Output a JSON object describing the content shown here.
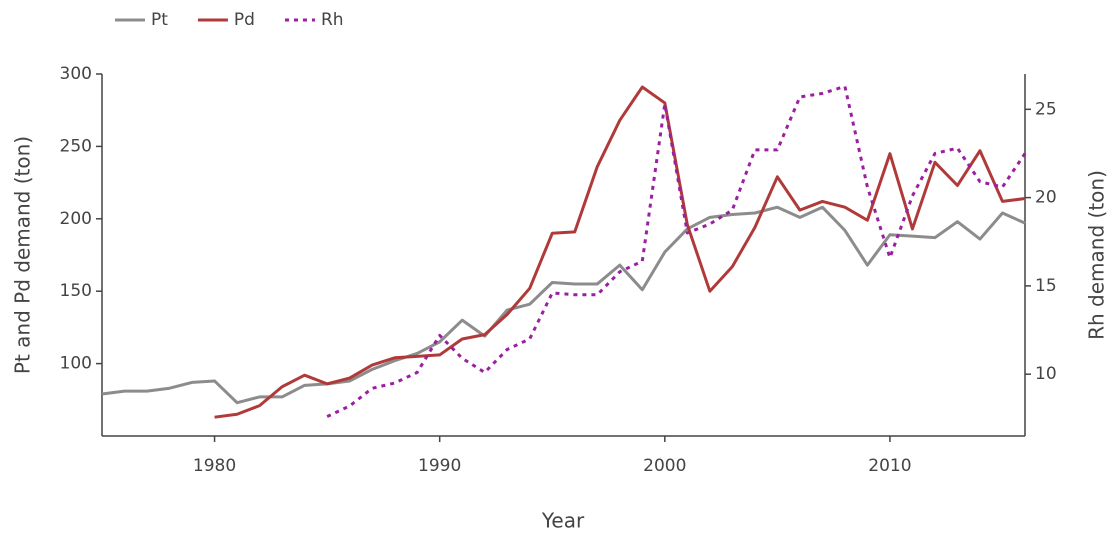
{
  "chart_data": {
    "type": "line",
    "x_label": "Year",
    "y_label": "Pt and Pd demand (ton)",
    "y2_label": "Rh demand (ton)",
    "x": [
      1975,
      1976,
      1977,
      1978,
      1979,
      1980,
      1981,
      1982,
      1983,
      1984,
      1985,
      1986,
      1987,
      1988,
      1989,
      1990,
      1991,
      1992,
      1993,
      1994,
      1995,
      1996,
      1997,
      1998,
      1999,
      2000,
      2001,
      2002,
      2003,
      2004,
      2005,
      2006,
      2007,
      2008,
      2009,
      2010,
      2011,
      2012,
      2013,
      2014,
      2015,
      2016
    ],
    "series": [
      {
        "name": "Pt",
        "color": "#8c8c8c",
        "dash": false,
        "values": [
          79,
          81,
          81,
          83,
          87,
          88,
          73,
          77,
          77,
          85,
          86,
          88,
          96,
          102,
          107,
          115,
          130,
          119,
          137,
          141,
          156,
          155,
          155,
          168,
          151,
          177,
          193,
          201,
          203,
          204,
          208,
          201,
          208,
          192,
          168,
          189,
          188,
          187,
          198,
          186,
          204,
          197
        ]
      },
      {
        "name": "Pd",
        "color": "#b03a3a",
        "dash": false,
        "values": [
          null,
          null,
          null,
          null,
          null,
          63,
          65,
          71,
          84,
          92,
          86,
          90,
          99,
          104,
          105,
          106,
          117,
          120,
          134,
          152,
          190,
          191,
          236,
          268,
          291,
          280,
          196,
          150,
          167,
          194,
          229,
          206,
          212,
          208,
          199,
          245,
          193,
          239,
          223,
          247,
          212,
          214
        ]
      },
      {
        "name": "Rh",
        "color": "#9b1fa1",
        "dash": true,
        "axis": "y2",
        "values": [
          null,
          null,
          null,
          null,
          null,
          null,
          null,
          null,
          null,
          null,
          7.6,
          8.2,
          9.2,
          9.5,
          10.1,
          12.2,
          10.9,
          10.1,
          11.4,
          12.0,
          14.6,
          14.5,
          14.5,
          15.8,
          16.4,
          25.3,
          18.0,
          18.5,
          19.3,
          22.7,
          22.7,
          25.7,
          25.9,
          26.3,
          20.6,
          16.6,
          20.1,
          22.5,
          22.8,
          20.9,
          20.6,
          22.5
        ]
      }
    ],
    "xlim": [
      1975,
      2016
    ],
    "xticks": [
      1980,
      1990,
      2000,
      2010
    ],
    "ylim": [
      50,
      300
    ],
    "yticks": [
      100,
      150,
      200,
      250,
      300
    ],
    "y2lim": [
      6.5,
      27
    ],
    "y2ticks": [
      10,
      15,
      20,
      25
    ],
    "grid": false,
    "legend": "top-left"
  }
}
